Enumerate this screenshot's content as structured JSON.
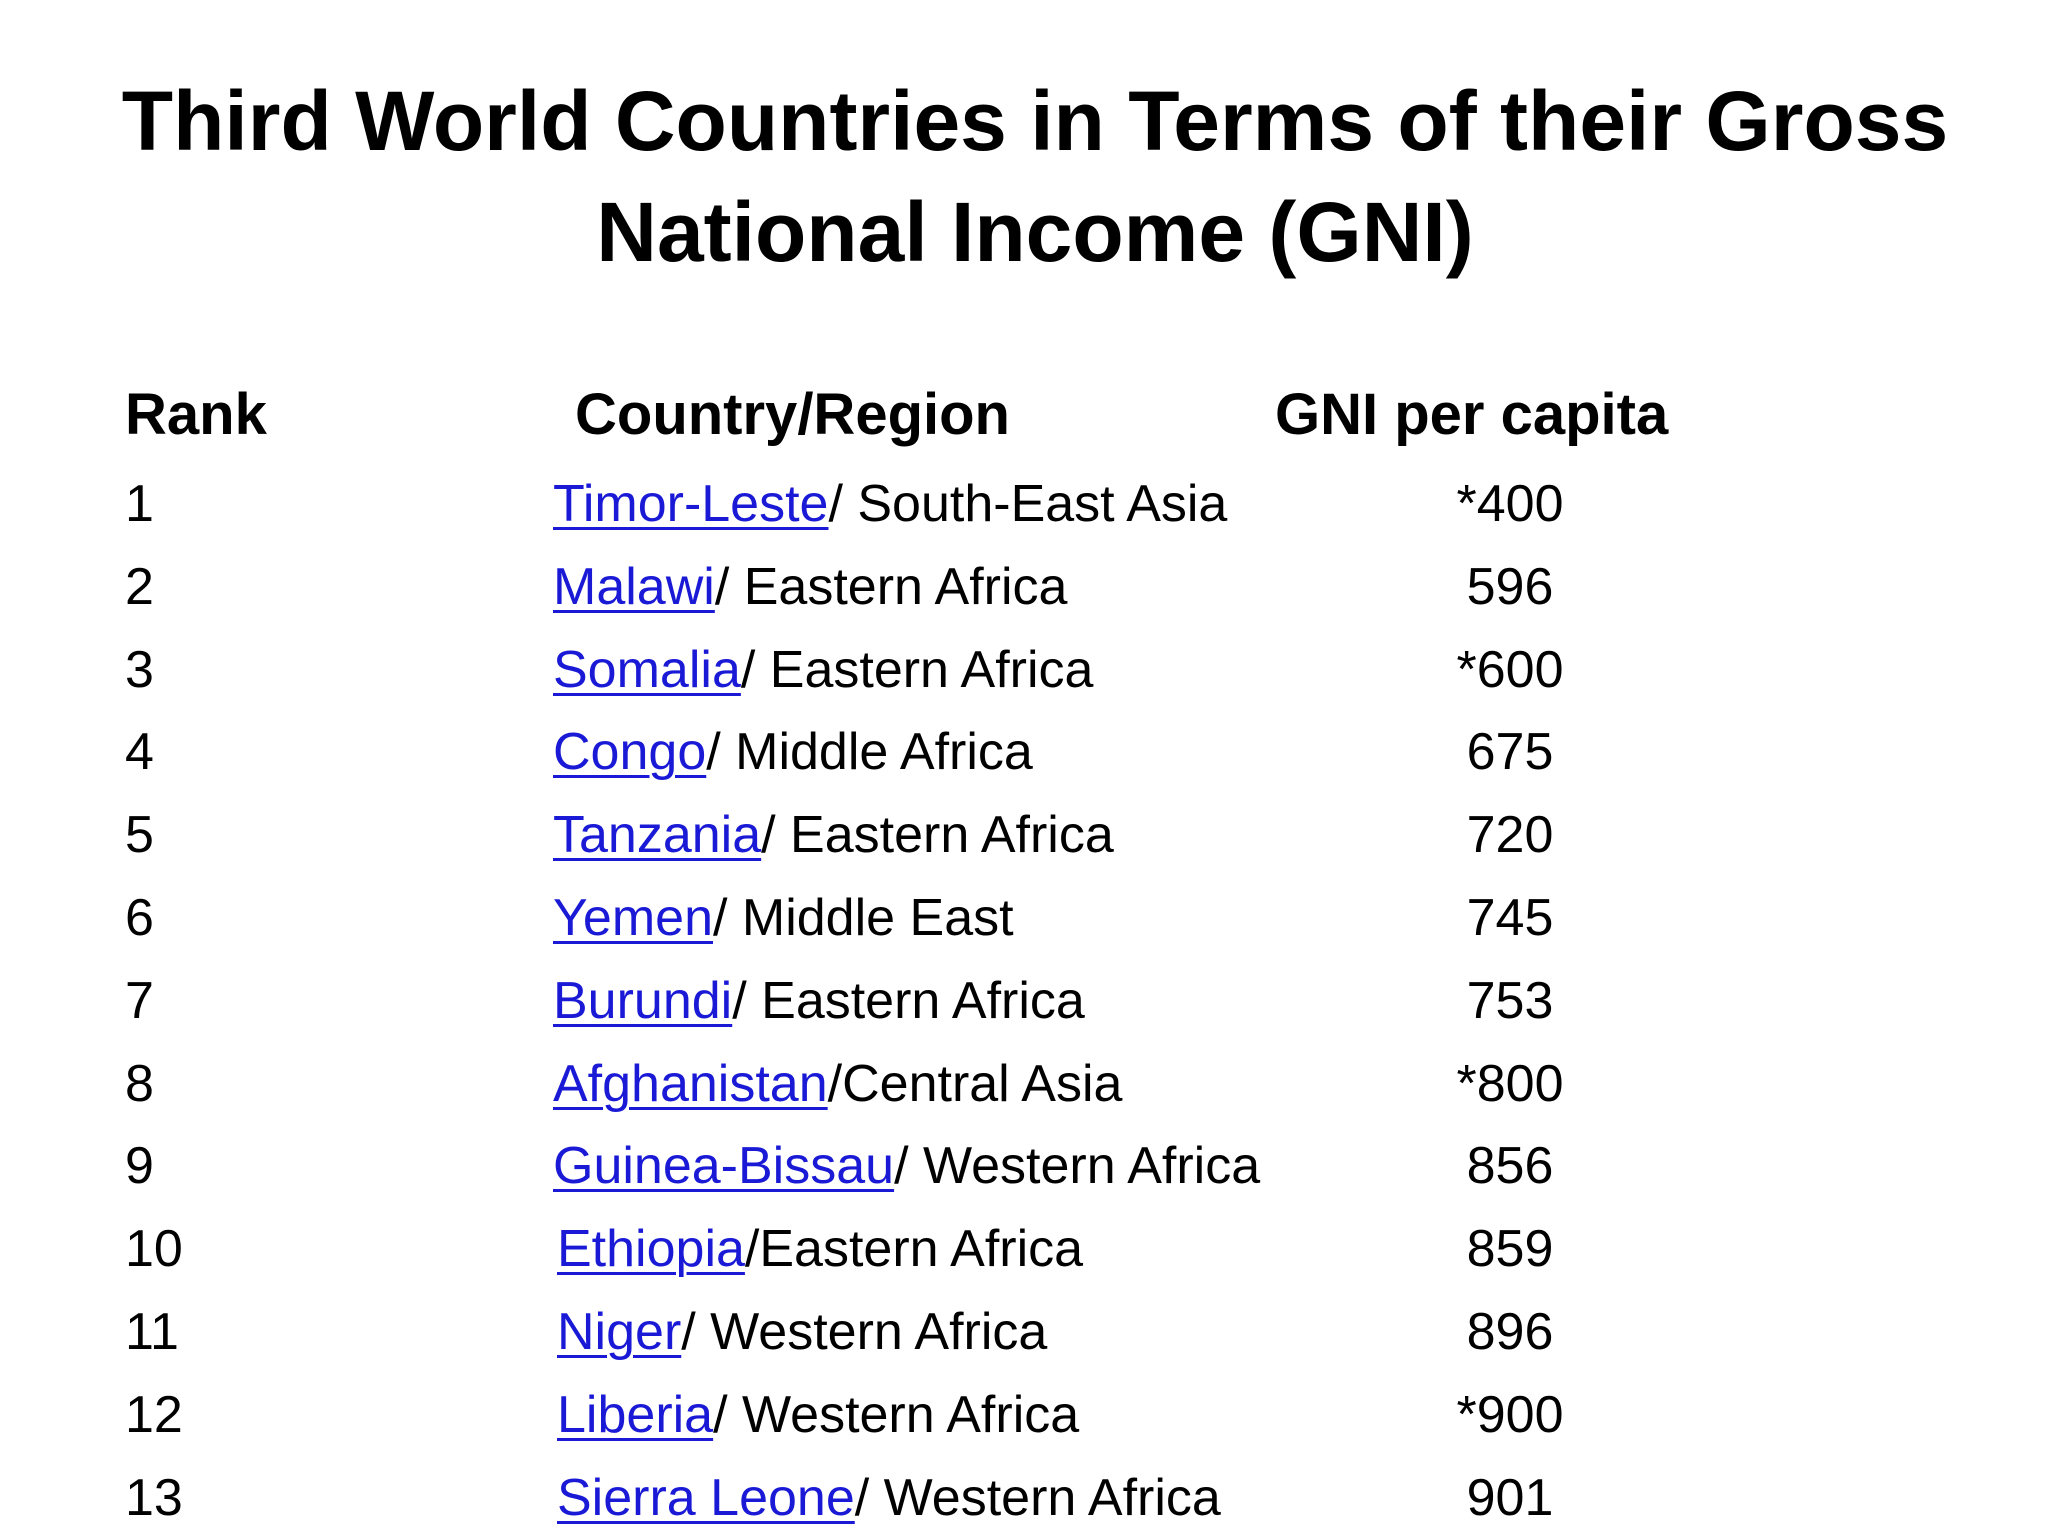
{
  "title": "Third World Countries in Terms of their Gross National Income (GNI)",
  "headers": {
    "rank": "Rank",
    "country": "Country/Region",
    "gni": "GNI per capita"
  },
  "rows": [
    {
      "rank": "1",
      "country": "Timor-Leste",
      "region": "/ South-East Asia",
      "gni": "*400"
    },
    {
      "rank": "2",
      "country": "Malawi",
      "region": "/ Eastern Africa",
      "gni": "596"
    },
    {
      "rank": "3",
      "country": "Somalia",
      "region": "/ Eastern Africa",
      "gni": "*600"
    },
    {
      "rank": "4",
      "country": "Congo",
      "region": "/ Middle Africa",
      "gni": "675"
    },
    {
      "rank": "5",
      "country": "Tanzania",
      "region": "/ Eastern Africa",
      "gni": "720"
    },
    {
      "rank": "6",
      "country": "Yemen",
      "region": "/ Middle East",
      "gni": "745"
    },
    {
      "rank": "7",
      "country": "Burundi",
      "region": "/ Eastern Africa",
      "gni": "753"
    },
    {
      "rank": "8",
      "country": "Afghanistan",
      "region": "/Central Asia",
      "gni": "*800"
    },
    {
      "rank": "9",
      "country": "Guinea-Bissau",
      "region": "/ Western Africa",
      "gni": "856"
    },
    {
      "rank": "10",
      "country": "Ethiopia",
      "region": "/Eastern Africa",
      "gni": "859"
    },
    {
      "rank": "11",
      "country": "Niger",
      "region": "/ Western Africa",
      "gni": "896"
    },
    {
      "rank": "12",
      "country": "Liberia",
      "region": "/ Western Africa",
      "gni": "*900"
    },
    {
      "rank": "13",
      "country": "Sierra Leone",
      "region": "/ Western Africa",
      "gni": "901"
    }
  ],
  "colors": {
    "link": "#1a1ad6",
    "text": "#000000",
    "background": "#ffffff"
  }
}
